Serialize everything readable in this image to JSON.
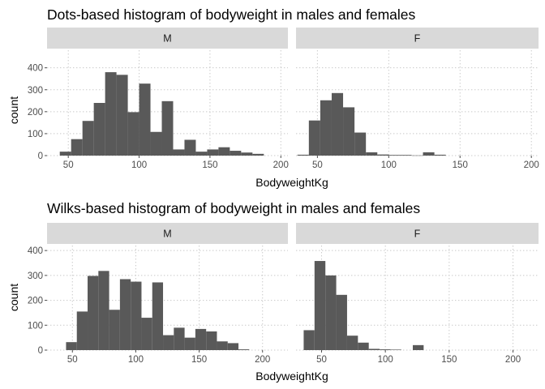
{
  "chart_data": [
    {
      "type": "bar",
      "title": "Dots-based histogram of bodyweight in males and females",
      "xlabel": "BodyweightKg",
      "ylabel": "count",
      "xlim": [
        35,
        205
      ],
      "ylim": [
        0,
        480
      ],
      "x_ticks": [
        50,
        100,
        150,
        200
      ],
      "y_ticks": [
        0,
        100,
        200,
        300,
        400
      ],
      "grid": true,
      "facets": [
        {
          "label": "M",
          "bins": [
            {
              "x0": 44,
              "x1": 52,
              "count": 18
            },
            {
              "x0": 52,
              "x1": 60,
              "count": 75
            },
            {
              "x0": 60,
              "x1": 68,
              "count": 158
            },
            {
              "x0": 68,
              "x1": 76,
              "count": 240
            },
            {
              "x0": 76,
              "x1": 84,
              "count": 380
            },
            {
              "x0": 84,
              "x1": 92,
              "count": 368
            },
            {
              "x0": 92,
              "x1": 100,
              "count": 198
            },
            {
              "x0": 100,
              "x1": 108,
              "count": 328
            },
            {
              "x0": 108,
              "x1": 116,
              "count": 108
            },
            {
              "x0": 116,
              "x1": 124,
              "count": 248
            },
            {
              "x0": 124,
              "x1": 132,
              "count": 28
            },
            {
              "x0": 132,
              "x1": 140,
              "count": 72
            },
            {
              "x0": 140,
              "x1": 148,
              "count": 18
            },
            {
              "x0": 148,
              "x1": 156,
              "count": 28
            },
            {
              "x0": 156,
              "x1": 164,
              "count": 38
            },
            {
              "x0": 164,
              "x1": 172,
              "count": 22
            },
            {
              "x0": 172,
              "x1": 180,
              "count": 14
            },
            {
              "x0": 180,
              "x1": 188,
              "count": 8
            }
          ]
        },
        {
          "label": "F",
          "bins": [
            {
              "x0": 36,
              "x1": 44,
              "count": 4
            },
            {
              "x0": 44,
              "x1": 52,
              "count": 160
            },
            {
              "x0": 52,
              "x1": 60,
              "count": 252
            },
            {
              "x0": 60,
              "x1": 68,
              "count": 285
            },
            {
              "x0": 68,
              "x1": 76,
              "count": 220
            },
            {
              "x0": 76,
              "x1": 84,
              "count": 105
            },
            {
              "x0": 84,
              "x1": 92,
              "count": 15
            },
            {
              "x0": 92,
              "x1": 100,
              "count": 5
            },
            {
              "x0": 100,
              "x1": 108,
              "count": 3
            },
            {
              "x0": 108,
              "x1": 116,
              "count": 3
            },
            {
              "x0": 116,
              "x1": 124,
              "count": 1
            },
            {
              "x0": 124,
              "x1": 132,
              "count": 15
            },
            {
              "x0": 132,
              "x1": 140,
              "count": 4
            }
          ]
        }
      ]
    },
    {
      "type": "bar",
      "title": "Wilks-based histogram of bodyweight in males and females",
      "xlabel": "BodyweightKg",
      "ylabel": "count",
      "xlim": [
        30,
        220
      ],
      "ylim": [
        0,
        420
      ],
      "x_ticks": [
        50,
        100,
        150,
        200
      ],
      "y_ticks": [
        0,
        100,
        200,
        300,
        400
      ],
      "grid": true,
      "facets": [
        {
          "label": "M",
          "bins": [
            {
              "x0": 45,
              "x1": 53.5,
              "count": 32
            },
            {
              "x0": 53.5,
              "x1": 62,
              "count": 155
            },
            {
              "x0": 62,
              "x1": 70.5,
              "count": 298
            },
            {
              "x0": 70.5,
              "x1": 79,
              "count": 318
            },
            {
              "x0": 79,
              "x1": 87.5,
              "count": 162
            },
            {
              "x0": 87.5,
              "x1": 96,
              "count": 285
            },
            {
              "x0": 96,
              "x1": 104.5,
              "count": 275
            },
            {
              "x0": 104.5,
              "x1": 113,
              "count": 130
            },
            {
              "x0": 113,
              "x1": 121.5,
              "count": 272
            },
            {
              "x0": 121.5,
              "x1": 130,
              "count": 60
            },
            {
              "x0": 130,
              "x1": 138.5,
              "count": 90
            },
            {
              "x0": 138.5,
              "x1": 147,
              "count": 50
            },
            {
              "x0": 147,
              "x1": 155.5,
              "count": 85
            },
            {
              "x0": 155.5,
              "x1": 164,
              "count": 75
            },
            {
              "x0": 164,
              "x1": 172.5,
              "count": 35
            },
            {
              "x0": 172.5,
              "x1": 181,
              "count": 28
            },
            {
              "x0": 181,
              "x1": 189.5,
              "count": 3
            }
          ]
        },
        {
          "label": "F",
          "bins": [
            {
              "x0": 36,
              "x1": 44.5,
              "count": 80
            },
            {
              "x0": 44.5,
              "x1": 53,
              "count": 358
            },
            {
              "x0": 53,
              "x1": 61.5,
              "count": 300
            },
            {
              "x0": 61.5,
              "x1": 70,
              "count": 222
            },
            {
              "x0": 70,
              "x1": 78.5,
              "count": 58
            },
            {
              "x0": 78.5,
              "x1": 87,
              "count": 30
            },
            {
              "x0": 87,
              "x1": 95.5,
              "count": 5
            },
            {
              "x0": 95.5,
              "x1": 104,
              "count": 3
            },
            {
              "x0": 104,
              "x1": 112.5,
              "count": 2
            },
            {
              "x0": 121.5,
              "x1": 130,
              "count": 20
            }
          ]
        }
      ]
    }
  ]
}
